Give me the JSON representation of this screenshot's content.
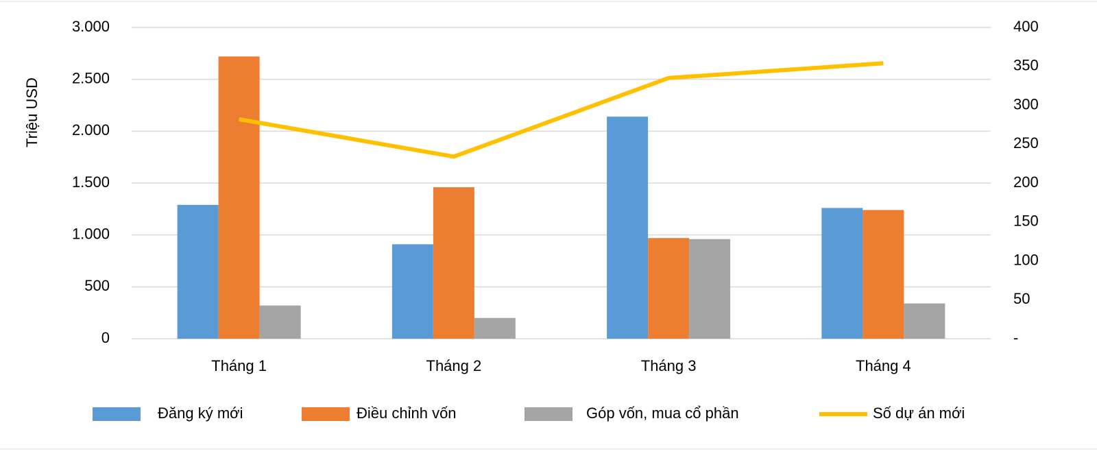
{
  "chart_data": {
    "type": "bar-line",
    "y_axis_label": "Triệu USD",
    "categories": [
      "Tháng 1",
      "Tháng 2",
      "Tháng 3",
      "Tháng 4"
    ],
    "series": [
      {
        "name": "Đăng ký mới",
        "color": "#5b9bd5",
        "type": "bar",
        "values": [
          1290,
          910,
          2140,
          1260
        ]
      },
      {
        "name": "Điều chỉnh vốn",
        "color": "#ed7d31",
        "type": "bar",
        "values": [
          2720,
          1460,
          970,
          1240
        ]
      },
      {
        "name": "Góp vốn, mua cổ phần",
        "color": "#a5a5a5",
        "type": "bar",
        "values": [
          320,
          200,
          960,
          340
        ]
      },
      {
        "name": "Số dự án mới",
        "color": "#ffc000",
        "type": "line",
        "axis": "y2",
        "values": [
          282,
          234,
          335,
          354
        ]
      }
    ],
    "ylim": [
      0,
      3000
    ],
    "yticks": [
      0,
      500,
      {
        "value": 1000,
        "label": "1.000"
      },
      {
        "value": 1500,
        "label": "1.500"
      },
      {
        "value": 2000,
        "label": "2.000"
      },
      {
        "value": 2500,
        "label": "2.500"
      },
      {
        "value": 3000,
        "label": "3.000"
      }
    ],
    "y2lim": [
      0,
      400
    ],
    "y2ticks": [
      {
        "value": 0,
        "label": "-"
      },
      50,
      100,
      150,
      200,
      250,
      300,
      350,
      400
    ],
    "grid": true,
    "legend": "bottom"
  }
}
